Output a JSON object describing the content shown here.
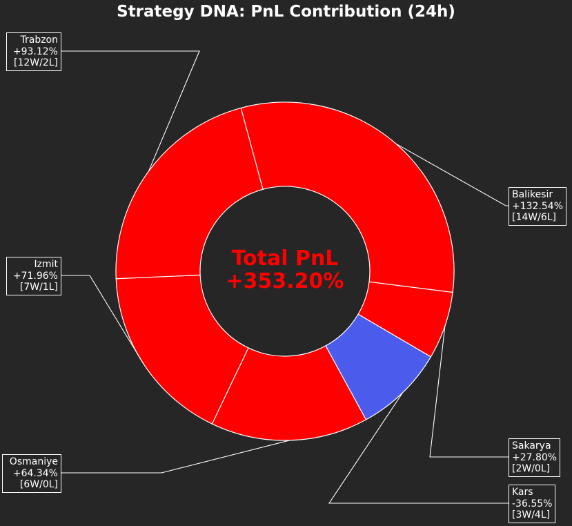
{
  "chart_data": {
    "type": "pie",
    "variant": "donut",
    "title": "Strategy DNA: PnL Contribution (24h)",
    "center_label": "Total PnL",
    "center_value": "+353.20%",
    "colors": {
      "background": "#262626",
      "positive": "#ff0000",
      "negative": "#4b5ced",
      "text": "#ffffff",
      "total": "#ff0000"
    },
    "slices": [
      {
        "name": "Balikesir",
        "pnl": "+132.54%",
        "record": "[14W/6L]",
        "value": 132.54,
        "share": 0.29,
        "color": "#ff0000"
      },
      {
        "name": "Sakarya",
        "pnl": "+27.80%",
        "record": "[2W/0L]",
        "value": 27.8,
        "share": 0.06,
        "color": "#ff0000"
      },
      {
        "name": "Kars",
        "pnl": "-36.55%",
        "record": "[3W/4L]",
        "value": -36.55,
        "share": 0.08,
        "color": "#4b5ced"
      },
      {
        "name": "Osmaniye",
        "pnl": "+64.34%",
        "record": "[6W/0L]",
        "value": 64.34,
        "share": 0.14,
        "color": "#ff0000"
      },
      {
        "name": "Izmit",
        "pnl": "+71.96%",
        "record": "[7W/1L]",
        "value": 71.96,
        "share": 0.16,
        "color": "#ff0000"
      },
      {
        "name": "Trabzon",
        "pnl": "+93.12%",
        "record": "[12W/2L]",
        "value": 93.12,
        "share": 0.2,
        "color": "#ff0000"
      }
    ]
  }
}
